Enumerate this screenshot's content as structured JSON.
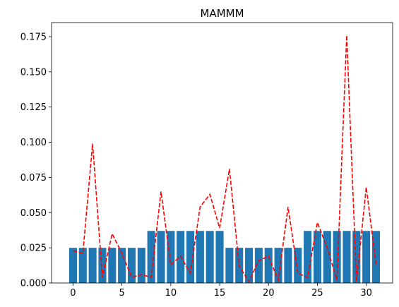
{
  "chart_data": {
    "type": "bar",
    "title": "MAMMM",
    "xlabel": "",
    "ylabel": "",
    "xlim": [
      -2.2,
      32.7
    ],
    "ylim": [
      0,
      0.185
    ],
    "x_ticks": [
      0,
      5,
      10,
      15,
      20,
      25,
      30
    ],
    "y_ticks": [
      0.0,
      0.025,
      0.05,
      0.075,
      0.1,
      0.125,
      0.15,
      0.175
    ],
    "y_tick_labels": [
      "0.000",
      "0.025",
      "0.050",
      "0.075",
      "0.100",
      "0.125",
      "0.150",
      "0.175"
    ],
    "grid": false,
    "legend": "none",
    "bar_series": {
      "color": "#1f77b4",
      "x": [
        0,
        1,
        2,
        3,
        4,
        5,
        6,
        7,
        8,
        9,
        10,
        11,
        12,
        13,
        14,
        15,
        16,
        17,
        18,
        19,
        20,
        21,
        22,
        23,
        24,
        25,
        26,
        27,
        28,
        29,
        30,
        31
      ],
      "values": [
        0.025,
        0.025,
        0.025,
        0.025,
        0.025,
        0.025,
        0.025,
        0.025,
        0.037,
        0.037,
        0.037,
        0.037,
        0.037,
        0.037,
        0.037,
        0.037,
        0.025,
        0.025,
        0.025,
        0.025,
        0.025,
        0.025,
        0.025,
        0.025,
        0.037,
        0.037,
        0.037,
        0.037,
        0.037,
        0.037,
        0.037,
        0.037
      ]
    },
    "line_series": {
      "color": "#ff0000",
      "style": "dashed",
      "x": [
        0,
        1,
        2,
        3,
        4,
        5,
        6,
        7,
        8,
        9,
        10,
        11,
        12,
        13,
        14,
        15,
        16,
        17,
        18,
        19,
        20,
        21,
        22,
        23,
        24,
        25,
        26,
        27,
        28,
        29,
        30,
        31
      ],
      "values": [
        0.023,
        0.021,
        0.099,
        0.004,
        0.035,
        0.021,
        0.004,
        0.006,
        0.004,
        0.065,
        0.013,
        0.019,
        0.007,
        0.054,
        0.063,
        0.039,
        0.081,
        0.012,
        0.001,
        0.016,
        0.019,
        0.002,
        0.054,
        0.007,
        0.004,
        0.043,
        0.025,
        0.002,
        0.176,
        0.001,
        0.068,
        0.013
      ]
    }
  }
}
